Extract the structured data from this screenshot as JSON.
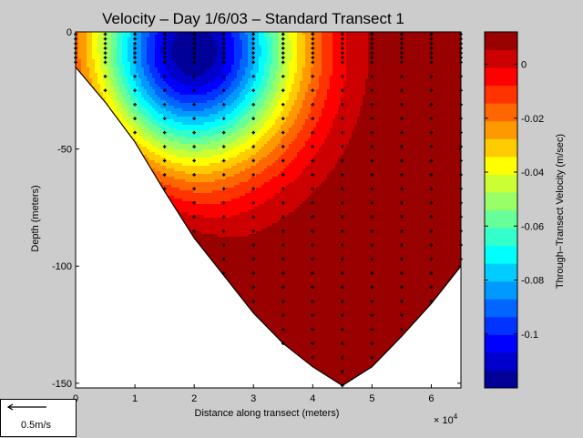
{
  "chart_data": {
    "type": "heatmap",
    "title": "Velocity – Day 1/6/03 – Standard Transect 1",
    "xlabel": "Distance along transect (meters)",
    "ylabel": "Depth (meters)",
    "x_exponent_label": "× 10",
    "x_exponent": "4",
    "x_ticks": [
      "0",
      "1",
      "2",
      "3",
      "4",
      "5",
      "6"
    ],
    "y_ticks": [
      "0",
      "-50",
      "-100",
      "-150"
    ],
    "xlim": [
      0,
      65000
    ],
    "ylim": [
      -152,
      0
    ],
    "colorbar": {
      "label": "Through–Transect Velocity (m/sec)",
      "ticks": [
        "0",
        "-0.02",
        "-0.04",
        "-0.06",
        "-0.08",
        "-0.1"
      ],
      "clim": [
        -0.12,
        0.012
      ],
      "levels": 20
    },
    "bottom_profile": [
      [
        0,
        -15
      ],
      [
        5000,
        -30
      ],
      [
        10000,
        -47
      ],
      [
        15000,
        -68
      ],
      [
        20000,
        -88
      ],
      [
        25000,
        -104
      ],
      [
        30000,
        -120
      ],
      [
        35000,
        -133
      ],
      [
        40000,
        -143
      ],
      [
        45000,
        -151
      ],
      [
        50000,
        -143
      ],
      [
        55000,
        -130
      ],
      [
        60000,
        -116
      ],
      [
        65000,
        -100
      ]
    ],
    "measurement_columns_x": [
      0,
      5000,
      10000,
      15000,
      20000,
      25000,
      30000,
      35000,
      40000,
      45000,
      50000,
      55000,
      60000,
      65000
    ],
    "velocity_field": {
      "core_min": {
        "x": 20000,
        "depth": -8,
        "value": -0.12
      },
      "bottom_max": {
        "x": 46000,
        "depth": -135,
        "value": 0.012
      }
    }
  },
  "legend": {
    "reference_arrow_label": "0.5m/s"
  },
  "colors": {
    "background": "#cccccc",
    "axes_fill": "#ffffff",
    "marker": "#000000"
  }
}
